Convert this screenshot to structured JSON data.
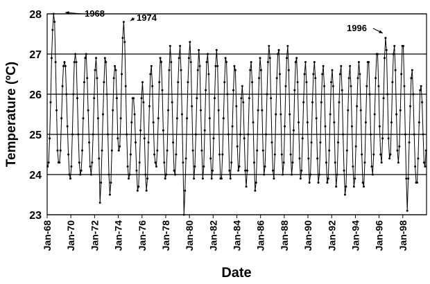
{
  "chart_data": {
    "type": "line",
    "xlabel": "Date",
    "ylabel": "Temperature (ºC)",
    "ylim": [
      23,
      28
    ],
    "yticks": [
      23,
      24,
      25,
      26,
      27,
      28
    ],
    "grid": true,
    "color": "#000000",
    "annotations": [
      {
        "text": "1968"
      },
      {
        "text": "1974"
      },
      {
        "text": "1996"
      }
    ],
    "categories": [
      "Jan-68",
      null,
      null,
      null,
      null,
      null,
      null,
      null,
      null,
      null,
      null,
      null,
      null,
      null,
      null,
      null,
      null,
      null,
      null,
      null,
      null,
      null,
      null,
      null,
      "Jan-70",
      null,
      null,
      null,
      null,
      null,
      null,
      null,
      null,
      null,
      null,
      null,
      null,
      null,
      null,
      null,
      null,
      null,
      null,
      null,
      null,
      null,
      null,
      null,
      "Jan-72",
      null,
      null,
      null,
      null,
      null,
      null,
      null,
      null,
      null,
      null,
      null,
      null,
      null,
      null,
      null,
      null,
      null,
      null,
      null,
      null,
      null,
      null,
      null,
      "Jan-74",
      null,
      null,
      null,
      null,
      null,
      null,
      null,
      null,
      null,
      null,
      null,
      null,
      null,
      null,
      null,
      null,
      null,
      null,
      null,
      null,
      null,
      null,
      null,
      "Jan-76",
      null,
      null,
      null,
      null,
      null,
      null,
      null,
      null,
      null,
      null,
      null,
      null,
      null,
      null,
      null,
      null,
      null,
      null,
      null,
      null,
      null,
      null,
      null,
      "Jan-78",
      null,
      null,
      null,
      null,
      null,
      null,
      null,
      null,
      null,
      null,
      null,
      null,
      null,
      null,
      null,
      null,
      null,
      null,
      null,
      null,
      null,
      null,
      null,
      "Jan-80",
      null,
      null,
      null,
      null,
      null,
      null,
      null,
      null,
      null,
      null,
      null,
      null,
      null,
      null,
      null,
      null,
      null,
      null,
      null,
      null,
      null,
      null,
      null,
      "Jan-82",
      null,
      null,
      null,
      null,
      null,
      null,
      null,
      null,
      null,
      null,
      null,
      null,
      null,
      null,
      null,
      null,
      null,
      null,
      null,
      null,
      null,
      null,
      null,
      "Jan-84",
      null,
      null,
      null,
      null,
      null,
      null,
      null,
      null,
      null,
      null,
      null,
      null,
      null,
      null,
      null,
      null,
      null,
      null,
      null,
      null,
      null,
      null,
      null,
      "Jan-86",
      null,
      null,
      null,
      null,
      null,
      null,
      null,
      null,
      null,
      null,
      null,
      null,
      null,
      null,
      null,
      null,
      null,
      null,
      null,
      null,
      null,
      null,
      null,
      "Jan-88",
      null,
      null,
      null,
      null,
      null,
      null,
      null,
      null,
      null,
      null,
      null,
      null,
      null,
      null,
      null,
      null,
      null,
      null,
      null,
      null,
      null,
      null,
      null,
      "Jan-90",
      null,
      null,
      null,
      null,
      null,
      null,
      null,
      null,
      null,
      null,
      null,
      null,
      null,
      null,
      null,
      null,
      null,
      null,
      null,
      null,
      null,
      null,
      null,
      "Jan-92",
      null,
      null,
      null,
      null,
      null,
      null,
      null,
      null,
      null,
      null,
      null,
      null,
      null,
      null,
      null,
      null,
      null,
      null,
      null,
      null,
      null,
      null,
      null,
      "Jan-94",
      null,
      null,
      null,
      null,
      null,
      null,
      null,
      null,
      null,
      null,
      null,
      null,
      null,
      null,
      null,
      null,
      null,
      null,
      null,
      null,
      null,
      null,
      null,
      "Jan-96",
      null,
      null,
      null,
      null,
      null,
      null,
      null,
      null,
      null,
      null,
      null,
      null,
      null,
      null,
      null,
      null,
      null,
      null,
      null,
      null,
      null,
      null,
      null,
      "Jan-98",
      null,
      null,
      null,
      null,
      null,
      null,
      null,
      null,
      null,
      null,
      null,
      null,
      null,
      null,
      null,
      null,
      null,
      null,
      null,
      null,
      null,
      null,
      null
    ],
    "values": [
      24.2,
      24.3,
      24.9,
      25.8,
      26.9,
      27.6,
      28.0,
      27.8,
      26.8,
      25.6,
      24.6,
      24.3,
      24.3,
      24.6,
      25.4,
      26.2,
      26.7,
      26.8,
      26.7,
      26.0,
      25.2,
      24.5,
      24.0,
      23.9,
      24.2,
      25.0,
      26.0,
      26.8,
      27.0,
      26.8,
      25.9,
      25.0,
      24.3,
      24.0,
      24.1,
      24.6,
      25.4,
      26.3,
      26.9,
      27.0,
      26.4,
      25.6,
      24.8,
      24.2,
      24.0,
      24.3,
      25.0,
      25.9,
      26.6,
      26.9,
      26.4,
      25.4,
      24.4,
      23.3,
      23.8,
      24.6,
      25.5,
      26.3,
      26.9,
      26.8,
      26.0,
      25.0,
      24.0,
      23.5,
      23.8,
      24.6,
      25.6,
      26.4,
      26.7,
      26.6,
      25.9,
      24.9,
      24.6,
      24.7,
      25.4,
      26.5,
      27.4,
      27.8,
      27.3,
      26.2,
      25.0,
      24.2,
      23.9,
      24.0,
      24.5,
      25.3,
      25.9,
      25.9,
      25.5,
      24.8,
      24.1,
      23.6,
      23.7,
      24.3,
      25.1,
      25.9,
      26.3,
      25.8,
      24.9,
      24.0,
      23.6,
      23.9,
      24.8,
      25.7,
      26.5,
      26.7,
      26.2,
      25.3,
      24.5,
      24.3,
      24.2,
      24.6,
      25.4,
      26.3,
      26.9,
      26.8,
      26.1,
      25.1,
      24.3,
      23.9,
      24.0,
      24.6,
      25.6,
      26.6,
      27.2,
      26.8,
      25.8,
      24.8,
      24.1,
      24.0,
      24.5,
      25.4,
      26.3,
      26.9,
      27.2,
      26.6,
      25.5,
      24.3,
      23.0,
      23.6,
      24.4,
      25.4,
      26.3,
      26.9,
      27.3,
      26.8,
      25.7,
      24.6,
      23.9,
      24.2,
      25.0,
      25.9,
      26.6,
      27.1,
      26.7,
      25.6,
      24.6,
      23.9,
      24.2,
      25.1,
      26.1,
      26.8,
      27.0,
      26.5,
      25.4,
      24.4,
      23.9,
      24.1,
      24.9,
      25.9,
      26.7,
      27.1,
      26.7,
      25.6,
      24.5,
      23.9,
      23.9,
      24.5,
      25.4,
      26.3,
      26.9,
      26.8,
      26.0,
      25.0,
      24.1,
      23.9,
      24.3,
      25.2,
      26.1,
      26.7,
      26.6,
      25.7,
      24.7,
      24.1,
      24.2,
      25.0,
      25.9,
      26.2,
      25.8,
      24.9,
      24.1,
      23.7,
      24.1,
      25.0,
      25.9,
      26.6,
      26.8,
      26.3,
      25.3,
      24.3,
      23.6,
      23.8,
      24.6,
      25.6,
      26.4,
      26.9,
      26.6,
      25.6,
      24.6,
      24.0,
      24.2,
      25.0,
      26.0,
      26.8,
      27.2,
      26.9,
      25.9,
      24.8,
      24.1,
      23.9,
      24.5,
      25.5,
      26.4,
      27.0,
      27.1,
      26.5,
      25.5,
      24.5,
      24.0,
      24.3,
      25.2,
      26.2,
      26.9,
      27.2,
      26.6,
      25.5,
      24.5,
      24.0,
      24.3,
      25.1,
      26.1,
      26.8,
      26.9,
      26.3,
      25.3,
      24.4,
      23.9,
      24.1,
      24.9,
      25.8,
      26.5,
      26.8,
      26.3,
      25.3,
      24.4,
      23.8,
      24.0,
      24.8,
      25.8,
      26.5,
      26.8,
      26.4,
      25.4,
      24.4,
      23.8,
      24.0,
      24.8,
      25.8,
      26.5,
      26.7,
      26.2,
      25.2,
      24.3,
      23.8,
      23.9,
      24.6,
      25.5,
      26.3,
      26.6,
      26.2,
      25.3,
      24.3,
      23.7,
      24.0,
      24.8,
      25.8,
      26.5,
      26.7,
      26.1,
      25.0,
      24.1,
      23.5,
      23.7,
      24.6,
      25.6,
      26.4,
      26.7,
      26.2,
      25.2,
      24.2,
      23.7,
      23.9,
      24.7,
      25.7,
      26.4,
      26.8,
      26.5,
      25.6,
      24.5,
      23.8,
      23.7,
      24.3,
      25.3,
      26.2,
      26.8,
      26.8,
      26.0,
      25.0,
      24.2,
      24.0,
      24.5,
      25.5,
      26.4,
      27.0,
      27.0,
      26.2,
      25.2,
      24.5,
      24.3,
      24.9,
      25.9,
      26.9,
      27.4,
      27.1,
      26.0,
      24.9,
      24.4,
      24.5,
      25.3,
      26.3,
      27.0,
      27.2,
      26.6,
      25.5,
      24.6,
      24.3,
      24.7,
      25.6,
      26.5,
      27.2,
      27.2,
      26.2,
      25.0,
      23.9,
      23.1,
      23.9,
      24.8,
      25.7,
      26.4,
      26.6,
      26.0,
      25.0,
      24.2,
      23.8,
      23.8,
      24.4,
      25.3,
      26.1,
      26.2,
      25.8,
      25.0,
      24.3,
      24.2,
      24.6
    ]
  }
}
